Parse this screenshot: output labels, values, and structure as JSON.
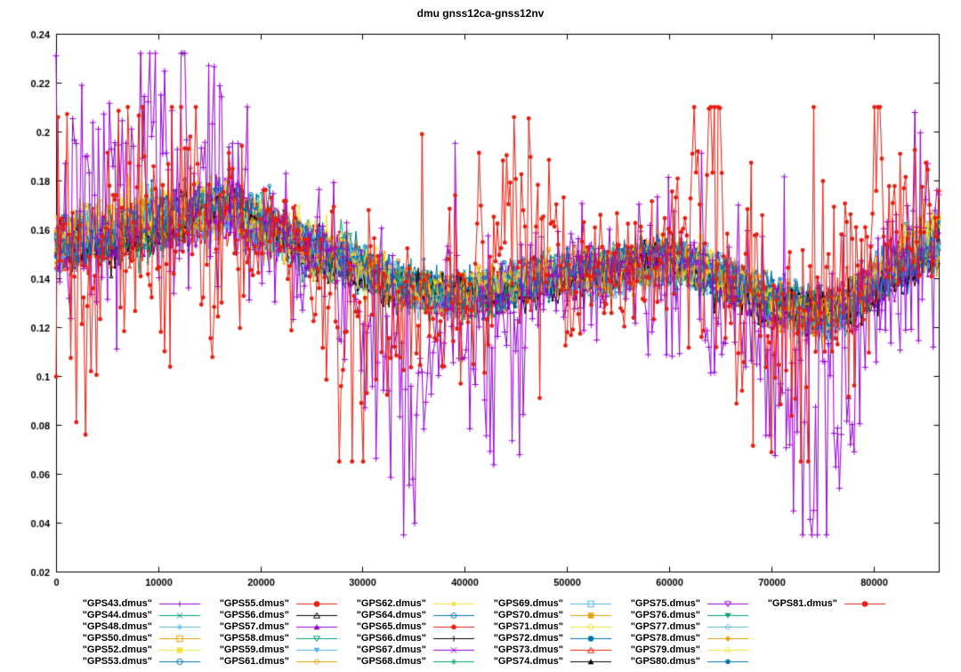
{
  "page": {
    "background": "#ffffff"
  },
  "chart_data": {
    "type": "line",
    "title": "dmu gnss12ca-gnss12nv",
    "xlabel": "",
    "ylabel": "",
    "xlim": [
      0,
      86400
    ],
    "ylim": [
      0.02,
      0.24
    ],
    "grid": false,
    "legend_position": "below",
    "legend_rows": 6,
    "seed": 7,
    "x_ticks": [
      {
        "v": 0,
        "label": "0"
      },
      {
        "v": 10000,
        "label": "10000"
      },
      {
        "v": 20000,
        "label": "20000"
      },
      {
        "v": 30000,
        "label": "30000"
      },
      {
        "v": 40000,
        "label": "40000"
      },
      {
        "v": 50000,
        "label": "50000"
      },
      {
        "v": 60000,
        "label": "60000"
      },
      {
        "v": 70000,
        "label": "70000"
      },
      {
        "v": 80000,
        "label": "80000"
      }
    ],
    "y_ticks": [
      {
        "v": 0.02,
        "label": "0.02"
      },
      {
        "v": 0.04,
        "label": "0.04"
      },
      {
        "v": 0.06,
        "label": "0.06"
      },
      {
        "v": 0.08,
        "label": "0.08"
      },
      {
        "v": 0.1,
        "label": "0.1"
      },
      {
        "v": 0.12,
        "label": "0.12"
      },
      {
        "v": 0.14,
        "label": "0.14"
      },
      {
        "v": 0.16,
        "label": "0.16"
      },
      {
        "v": 0.18,
        "label": "0.18"
      },
      {
        "v": 0.2,
        "label": "0.2"
      },
      {
        "v": 0.22,
        "label": "0.22"
      },
      {
        "v": 0.24,
        "label": "0.24"
      }
    ],
    "band": {
      "trend": [
        [
          0,
          0.152
        ],
        [
          3000,
          0.156
        ],
        [
          6000,
          0.159
        ],
        [
          9000,
          0.163
        ],
        [
          12000,
          0.166
        ],
        [
          15000,
          0.168
        ],
        [
          17000,
          0.169
        ],
        [
          20000,
          0.161
        ],
        [
          23000,
          0.154
        ],
        [
          26000,
          0.15
        ],
        [
          30000,
          0.144
        ],
        [
          34000,
          0.137
        ],
        [
          38000,
          0.134
        ],
        [
          42000,
          0.134
        ],
        [
          46000,
          0.138
        ],
        [
          50000,
          0.141
        ],
        [
          54000,
          0.142
        ],
        [
          58000,
          0.146
        ],
        [
          61000,
          0.147
        ],
        [
          64000,
          0.143
        ],
        [
          67000,
          0.137
        ],
        [
          70000,
          0.131
        ],
        [
          73000,
          0.127
        ],
        [
          75500,
          0.125
        ],
        [
          78000,
          0.13
        ],
        [
          80000,
          0.137
        ],
        [
          83000,
          0.147
        ],
        [
          86400,
          0.156
        ]
      ],
      "width": [
        [
          0,
          0.013
        ],
        [
          8000,
          0.014
        ],
        [
          15000,
          0.013
        ],
        [
          20000,
          0.012
        ],
        [
          26000,
          0.011
        ],
        [
          34000,
          0.011
        ],
        [
          42000,
          0.01
        ],
        [
          50000,
          0.01
        ],
        [
          58000,
          0.011
        ],
        [
          66000,
          0.011
        ],
        [
          72000,
          0.011
        ],
        [
          78000,
          0.012
        ],
        [
          86400,
          0.013
        ]
      ]
    },
    "outliers": {
      "GPS43": {
        "clamp": [
          0.035,
          0.232
        ],
        "points": [
          [
            0,
            0.01,
            0.025
          ],
          [
            5000,
            0.01,
            0.03
          ],
          [
            8000,
            0.02,
            0.03
          ],
          [
            11000,
            0.03,
            0.035
          ],
          [
            14000,
            0.02,
            0.035
          ],
          [
            17000,
            0.01,
            0.03
          ],
          [
            20000,
            0.0,
            0.02
          ],
          [
            24000,
            0.0,
            0.012
          ],
          [
            28000,
            -0.005,
            0.015
          ],
          [
            31000,
            -0.015,
            0.03
          ],
          [
            34000,
            -0.03,
            0.035
          ],
          [
            36000,
            -0.035,
            0.03
          ],
          [
            38000,
            -0.01,
            0.02
          ],
          [
            41000,
            -0.01,
            0.025
          ],
          [
            44000,
            -0.015,
            0.025
          ],
          [
            47000,
            -0.005,
            0.02
          ],
          [
            50000,
            0.0,
            0.015
          ],
          [
            54000,
            0.0,
            0.012
          ],
          [
            58000,
            -0.005,
            0.015
          ],
          [
            61000,
            -0.01,
            0.02
          ],
          [
            64000,
            -0.02,
            0.02
          ],
          [
            67000,
            -0.01,
            0.02
          ],
          [
            70000,
            -0.02,
            0.03
          ],
          [
            73000,
            -0.045,
            0.035
          ],
          [
            75500,
            -0.055,
            0.035
          ],
          [
            78000,
            -0.02,
            0.03
          ],
          [
            80000,
            -0.005,
            0.02
          ],
          [
            83000,
            0.01,
            0.025
          ],
          [
            86400,
            0.02,
            0.03
          ]
        ]
      },
      "GPS81": {
        "clamp": [
          0.065,
          0.21
        ],
        "points": [
          [
            0,
            0.0,
            0.03
          ],
          [
            4000,
            -0.005,
            0.035
          ],
          [
            8000,
            0.0,
            0.03
          ],
          [
            12000,
            -0.005,
            0.03
          ],
          [
            16000,
            -0.01,
            0.03
          ],
          [
            20000,
            -0.005,
            0.02
          ],
          [
            24000,
            0.0,
            0.015
          ],
          [
            28000,
            -0.02,
            0.03
          ],
          [
            31000,
            -0.025,
            0.03
          ],
          [
            34000,
            -0.01,
            0.02
          ],
          [
            37000,
            -0.005,
            0.02
          ],
          [
            40000,
            0.0,
            0.02
          ],
          [
            43000,
            0.02,
            0.03
          ],
          [
            45000,
            0.03,
            0.03
          ],
          [
            47000,
            0.02,
            0.03
          ],
          [
            50000,
            0.0,
            0.015
          ],
          [
            53000,
            0.0,
            0.012
          ],
          [
            56000,
            0.0,
            0.015
          ],
          [
            59000,
            0.005,
            0.02
          ],
          [
            62000,
            0.02,
            0.03
          ],
          [
            65000,
            0.025,
            0.035
          ],
          [
            68000,
            0.0,
            0.025
          ],
          [
            71000,
            -0.02,
            0.03
          ],
          [
            73000,
            -0.025,
            0.03
          ],
          [
            76000,
            0.01,
            0.035
          ],
          [
            78000,
            0.03,
            0.035
          ],
          [
            80000,
            0.04,
            0.03
          ],
          [
            82000,
            0.02,
            0.025
          ],
          [
            84000,
            0.005,
            0.02
          ],
          [
            86400,
            0.0,
            0.02
          ]
        ]
      }
    },
    "series": [
      {
        "id": "GPS43",
        "label": "\"GPS43.dmus\"",
        "color": "#9400d3",
        "marker": "plus",
        "role": "outlier"
      },
      {
        "id": "GPS44",
        "label": "\"GPS44.dmus\"",
        "color": "#009e73",
        "marker": "cross",
        "role": "band"
      },
      {
        "id": "GPS48",
        "label": "\"GPS48.dmus\"",
        "color": "#56b4e9",
        "marker": "asterisk",
        "role": "band"
      },
      {
        "id": "GPS50",
        "label": "\"GPS50.dmus\"",
        "color": "#e69f00",
        "marker": "square-open",
        "role": "band"
      },
      {
        "id": "GPS52",
        "label": "\"GPS52.dmus\"",
        "color": "#f0e442",
        "marker": "square-filled",
        "role": "band"
      },
      {
        "id": "GPS53",
        "label": "\"GPS53.dmus\"",
        "color": "#0072b2",
        "marker": "circle-open",
        "role": "band"
      },
      {
        "id": "GPS55",
        "label": "\"GPS55.dmus\"",
        "color": "#e51e10",
        "marker": "circle-filled",
        "role": "band"
      },
      {
        "id": "GPS56",
        "label": "\"GPS56.dmus\"",
        "color": "#000000",
        "marker": "triangle-open",
        "role": "band"
      },
      {
        "id": "GPS57",
        "label": "\"GPS57.dmus\"",
        "color": "#9400d3",
        "marker": "triangle-filled",
        "role": "band"
      },
      {
        "id": "GPS58",
        "label": "\"GPS58.dmus\"",
        "color": "#009e73",
        "marker": "invtriangle-open",
        "role": "band"
      },
      {
        "id": "GPS59",
        "label": "\"GPS59.dmus\"",
        "color": "#56b4e9",
        "marker": "invtriangle-filled",
        "role": "band"
      },
      {
        "id": "GPS61",
        "label": "\"GPS61.dmus\"",
        "color": "#e69f00",
        "marker": "diamond-open",
        "role": "band"
      },
      {
        "id": "GPS62",
        "label": "\"GPS62.dmus\"",
        "color": "#f0e442",
        "marker": "diamond-filled",
        "role": "band"
      },
      {
        "id": "GPS64",
        "label": "\"GPS64.dmus\"",
        "color": "#0072b2",
        "marker": "pentagon-open",
        "role": "band"
      },
      {
        "id": "GPS65",
        "label": "\"GPS65.dmus\"",
        "color": "#e51e10",
        "marker": "pentagon-filled",
        "role": "band"
      },
      {
        "id": "GPS66",
        "label": "\"GPS66.dmus\"",
        "color": "#000000",
        "marker": "plus",
        "role": "band"
      },
      {
        "id": "GPS67",
        "label": "\"GPS67.dmus\"",
        "color": "#9400d3",
        "marker": "cross",
        "role": "band"
      },
      {
        "id": "GPS68",
        "label": "\"GPS68.dmus\"",
        "color": "#009e73",
        "marker": "asterisk",
        "role": "band"
      },
      {
        "id": "GPS69",
        "label": "\"GPS69.dmus\"",
        "color": "#56b4e9",
        "marker": "square-open",
        "role": "band"
      },
      {
        "id": "GPS70",
        "label": "\"GPS70.dmus\"",
        "color": "#e69f00",
        "marker": "square-filled",
        "role": "band"
      },
      {
        "id": "GPS71",
        "label": "\"GPS71.dmus\"",
        "color": "#f0e442",
        "marker": "circle-open",
        "role": "band"
      },
      {
        "id": "GPS72",
        "label": "\"GPS72.dmus\"",
        "color": "#0072b2",
        "marker": "circle-filled",
        "role": "band"
      },
      {
        "id": "GPS73",
        "label": "\"GPS73.dmus\"",
        "color": "#e51e10",
        "marker": "triangle-open",
        "role": "band"
      },
      {
        "id": "GPS74",
        "label": "\"GPS74.dmus\"",
        "color": "#000000",
        "marker": "triangle-filled",
        "role": "band"
      },
      {
        "id": "GPS75",
        "label": "\"GPS75.dmus\"",
        "color": "#9400d3",
        "marker": "invtriangle-open",
        "role": "band"
      },
      {
        "id": "GPS76",
        "label": "\"GPS76.dmus\"",
        "color": "#009e73",
        "marker": "invtriangle-filled",
        "role": "band"
      },
      {
        "id": "GPS77",
        "label": "\"GPS77.dmus\"",
        "color": "#56b4e9",
        "marker": "diamond-open",
        "role": "band"
      },
      {
        "id": "GPS78",
        "label": "\"GPS78.dmus\"",
        "color": "#e69f00",
        "marker": "diamond-filled",
        "role": "band"
      },
      {
        "id": "GPS79",
        "label": "\"GPS79.dmus\"",
        "color": "#f0e442",
        "marker": "pentagon-open",
        "role": "band"
      },
      {
        "id": "GPS80",
        "label": "\"GPS80.dmus\"",
        "color": "#0072b2",
        "marker": "pentagon-filled",
        "role": "band"
      },
      {
        "id": "GPS81",
        "label": "\"GPS81.dmus\"",
        "color": "#e51e10",
        "marker": "circle-filled",
        "role": "outlier"
      }
    ]
  }
}
